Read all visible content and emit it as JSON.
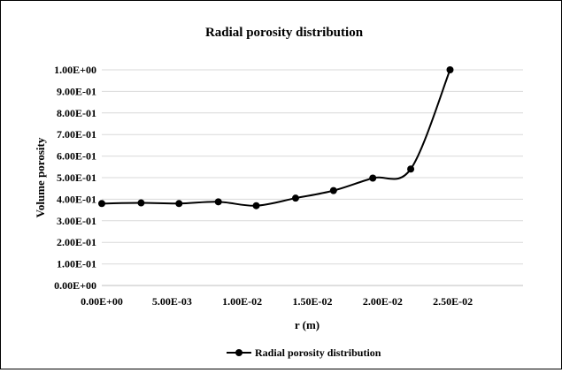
{
  "chart_data": {
    "type": "line",
    "title": "Radial porosity distribution",
    "xlabel": "r (m)",
    "ylabel": "Volume porosity",
    "x_ticks": [
      "0.00E+00",
      "5.00E-03",
      "1.00E-02",
      "1.50E-02",
      "2.00E-02",
      "2.50E-02"
    ],
    "y_ticks": [
      "0.00E+00",
      "1.00E-01",
      "2.00E-01",
      "3.00E-01",
      "4.00E-01",
      "5.00E-01",
      "6.00E-01",
      "7.00E-01",
      "8.00E-01",
      "9.00E-01",
      "1.00E+00"
    ],
    "xlim": [
      0,
      0.03
    ],
    "ylim": [
      0,
      1
    ],
    "grid": "horizontal",
    "legend_position": "bottom",
    "series": [
      {
        "name": "Radial porosity distribution",
        "color": "#000000",
        "marker": "circle",
        "smooth": true,
        "x": [
          0.0,
          0.0028,
          0.0055,
          0.0083,
          0.011,
          0.0138,
          0.0165,
          0.0193,
          0.022,
          0.0248
        ],
        "y": [
          0.38,
          0.383,
          0.38,
          0.388,
          0.37,
          0.405,
          0.44,
          0.498,
          0.54,
          1.0
        ]
      }
    ]
  }
}
